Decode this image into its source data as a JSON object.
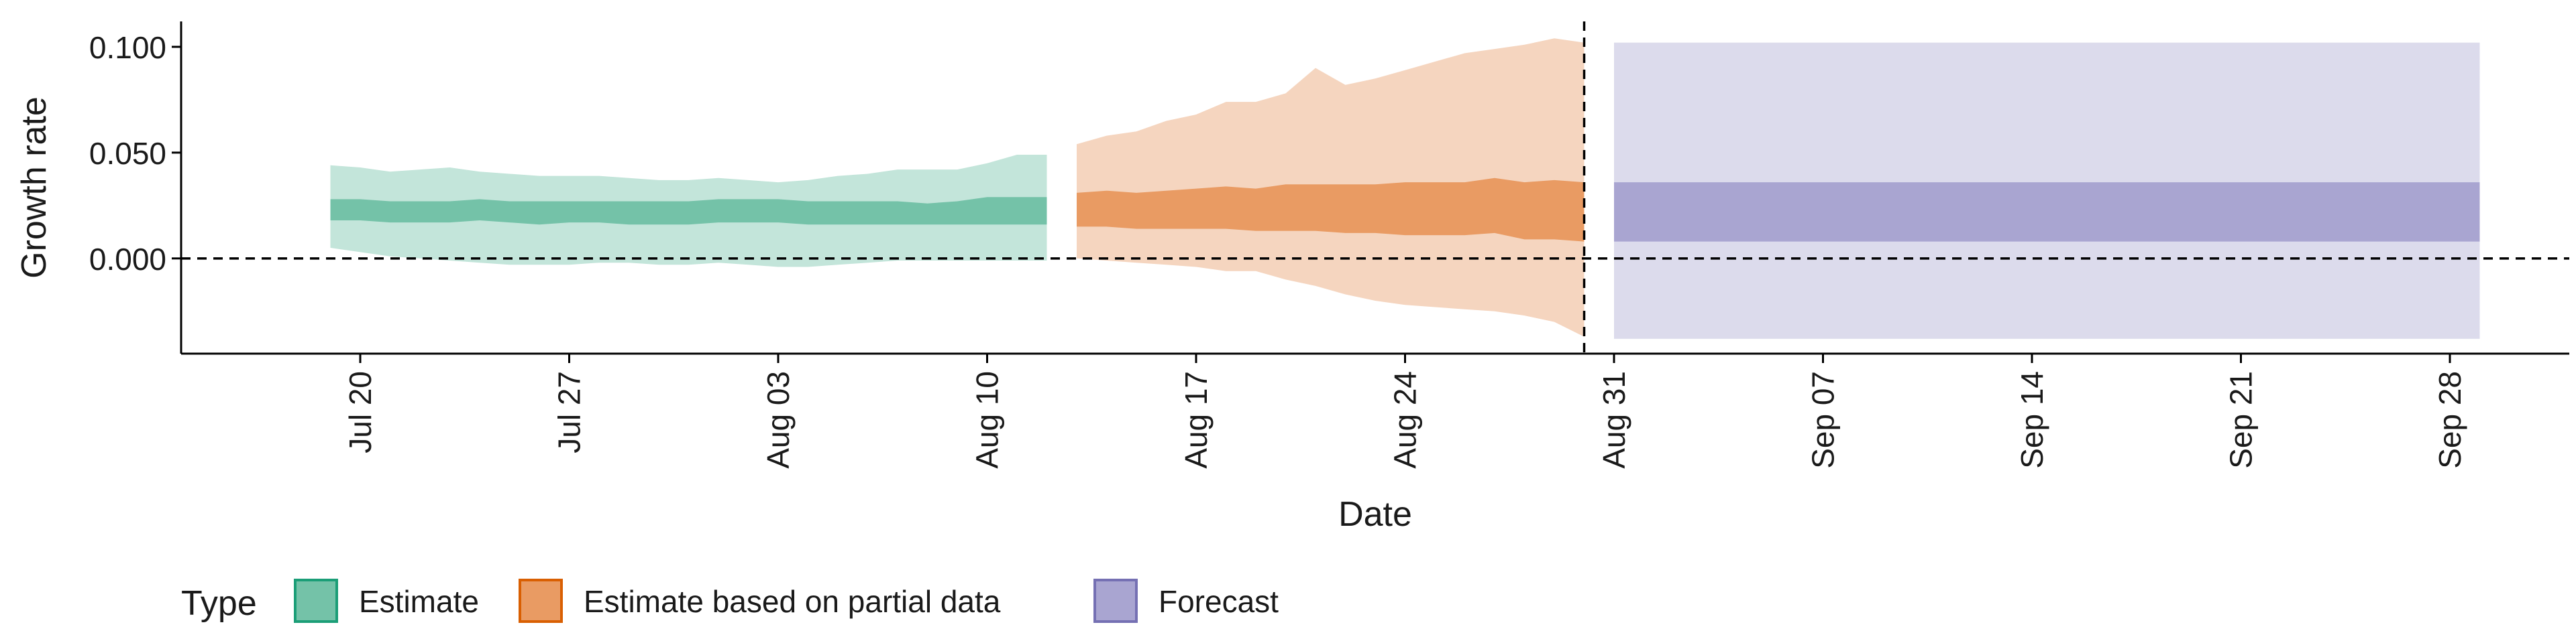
{
  "chart_data": {
    "type": "area",
    "xlabel": "Date",
    "ylabel": "Growth rate",
    "x_range": [
      "2020-07-14",
      "2020-10-02"
    ],
    "ylim": [
      -0.045,
      0.112
    ],
    "y_ticks": [
      0.0,
      0.05,
      0.1
    ],
    "y_tick_labels": [
      "0.000",
      "0.050",
      "0.100"
    ],
    "x_ticks": [
      "2020-07-20",
      "2020-07-27",
      "2020-08-03",
      "2020-08-10",
      "2020-08-17",
      "2020-08-24",
      "2020-08-31",
      "2020-09-07",
      "2020-09-14",
      "2020-09-21",
      "2020-09-28"
    ],
    "x_tick_labels": [
      "Jul 20",
      "Jul 27",
      "Aug 03",
      "Aug 10",
      "Aug 17",
      "Aug 24",
      "Aug 31",
      "Sep 07",
      "Sep 14",
      "Sep 21",
      "Sep 28"
    ],
    "reference_lines": {
      "hline_y": 0.0,
      "vline_x": "2020-08-30"
    },
    "grid": false,
    "legend": {
      "title": "Type",
      "placement": "bottom-left",
      "entries": [
        {
          "label": "Estimate",
          "fill": "#74c2a8",
          "stroke": "#1b9e77"
        },
        {
          "label": "Estimate based on partial data",
          "fill": "#e99b63",
          "stroke": "#d95f02"
        },
        {
          "label": "Forecast",
          "fill": "#a9a5d1",
          "stroke": "#7570b3"
        }
      ]
    },
    "series": [
      {
        "name": "Estimate",
        "outer_color": "#c3e5da",
        "inner_color": "#74c2a8",
        "x": [
          "2020-07-19",
          "2020-07-20",
          "2020-07-21",
          "2020-07-22",
          "2020-07-23",
          "2020-07-24",
          "2020-07-25",
          "2020-07-26",
          "2020-07-27",
          "2020-07-28",
          "2020-07-29",
          "2020-07-30",
          "2020-07-31",
          "2020-08-01",
          "2020-08-02",
          "2020-08-03",
          "2020-08-04",
          "2020-08-05",
          "2020-08-06",
          "2020-08-07",
          "2020-08-08",
          "2020-08-09",
          "2020-08-10",
          "2020-08-11",
          "2020-08-12"
        ],
        "outer_upper": [
          0.044,
          0.043,
          0.041,
          0.042,
          0.043,
          0.041,
          0.04,
          0.039,
          0.039,
          0.039,
          0.038,
          0.037,
          0.037,
          0.038,
          0.037,
          0.036,
          0.037,
          0.039,
          0.04,
          0.042,
          0.042,
          0.042,
          0.045,
          0.049,
          0.049
        ],
        "inner_upper": [
          0.028,
          0.028,
          0.027,
          0.027,
          0.027,
          0.028,
          0.027,
          0.027,
          0.027,
          0.027,
          0.027,
          0.027,
          0.027,
          0.028,
          0.028,
          0.028,
          0.027,
          0.027,
          0.027,
          0.027,
          0.026,
          0.027,
          0.029,
          0.029,
          0.029
        ],
        "inner_lower": [
          0.018,
          0.018,
          0.017,
          0.017,
          0.017,
          0.018,
          0.017,
          0.016,
          0.017,
          0.017,
          0.016,
          0.016,
          0.016,
          0.017,
          0.017,
          0.017,
          0.016,
          0.016,
          0.016,
          0.016,
          0.016,
          0.016,
          0.016,
          0.016,
          0.016
        ],
        "outer_lower": [
          0.005,
          0.003,
          0.001,
          0.0,
          -0.001,
          -0.002,
          -0.003,
          -0.003,
          -0.003,
          -0.002,
          -0.002,
          -0.003,
          -0.003,
          -0.002,
          -0.003,
          -0.004,
          -0.004,
          -0.003,
          -0.002,
          -0.001,
          -0.001,
          -0.001,
          -0.001,
          -0.001,
          -0.001
        ]
      },
      {
        "name": "Estimate based on partial data",
        "outer_color": "#f5d5bf",
        "inner_color": "#e99b63",
        "x": [
          "2020-08-13",
          "2020-08-14",
          "2020-08-15",
          "2020-08-16",
          "2020-08-17",
          "2020-08-18",
          "2020-08-19",
          "2020-08-20",
          "2020-08-21",
          "2020-08-22",
          "2020-08-23",
          "2020-08-24",
          "2020-08-25",
          "2020-08-26",
          "2020-08-27",
          "2020-08-28",
          "2020-08-29",
          "2020-08-30"
        ],
        "outer_upper": [
          0.054,
          0.058,
          0.06,
          0.065,
          0.068,
          0.074,
          0.074,
          0.078,
          0.09,
          0.082,
          0.085,
          0.089,
          0.093,
          0.097,
          0.099,
          0.101,
          0.104,
          0.102
        ],
        "inner_upper": [
          0.031,
          0.032,
          0.031,
          0.032,
          0.033,
          0.034,
          0.033,
          0.035,
          0.035,
          0.035,
          0.035,
          0.036,
          0.036,
          0.036,
          0.038,
          0.036,
          0.037,
          0.036
        ],
        "inner_lower": [
          0.015,
          0.015,
          0.014,
          0.014,
          0.014,
          0.014,
          0.013,
          0.013,
          0.013,
          0.012,
          0.012,
          0.011,
          0.011,
          0.011,
          0.012,
          0.009,
          0.009,
          0.008
        ],
        "outer_lower": [
          0.0,
          -0.001,
          -0.002,
          -0.003,
          -0.004,
          -0.006,
          -0.006,
          -0.01,
          -0.013,
          -0.017,
          -0.02,
          -0.022,
          -0.023,
          -0.024,
          -0.025,
          -0.027,
          -0.03,
          -0.037
        ]
      },
      {
        "name": "Forecast",
        "outer_color": "#dcdbec",
        "inner_color": "#a9a5d1",
        "x": [
          "2020-08-31",
          "2020-09-29"
        ],
        "outer_upper": [
          0.102,
          0.102
        ],
        "inner_upper": [
          0.036,
          0.036
        ],
        "inner_lower": [
          0.008,
          0.008
        ],
        "outer_lower": [
          -0.038,
          -0.038
        ]
      }
    ]
  }
}
